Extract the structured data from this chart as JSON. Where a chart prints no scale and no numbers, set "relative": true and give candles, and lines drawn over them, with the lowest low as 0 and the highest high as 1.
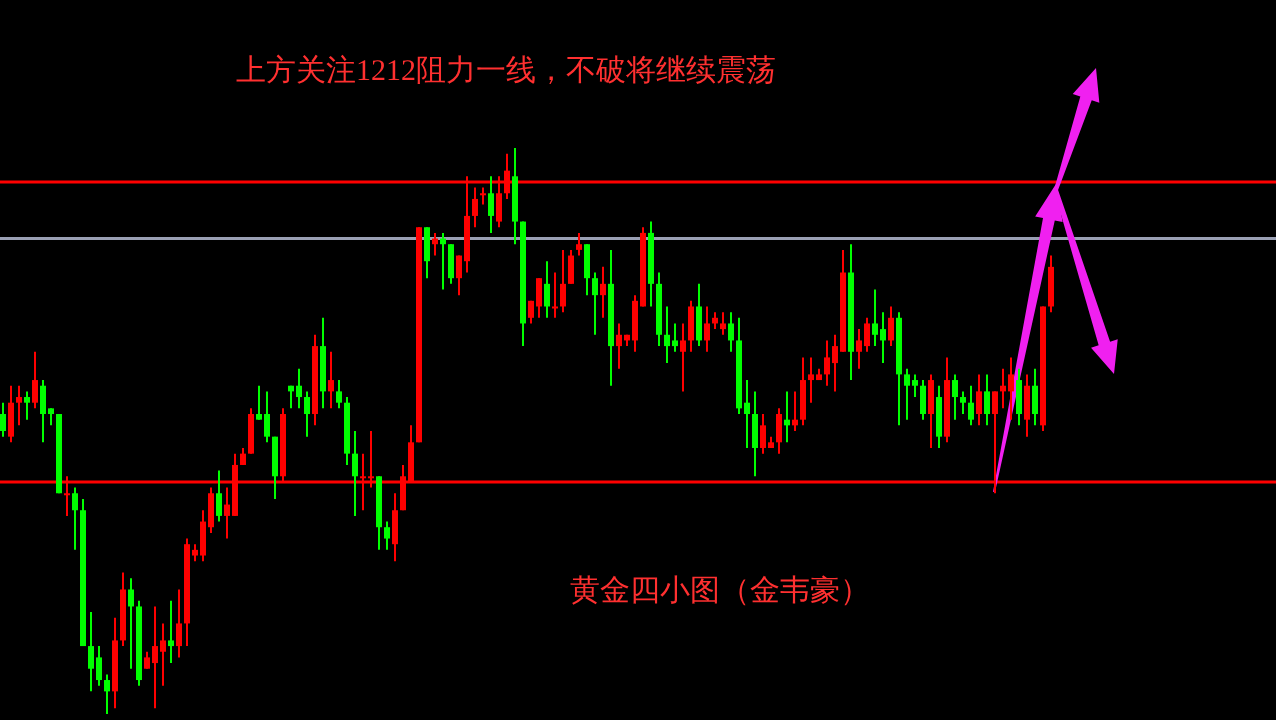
{
  "chart_data": {
    "type": "candlestick",
    "relative": true,
    "title": "上方关注1212阻力一线，不破将继续震荡",
    "annotations": [
      "黄金四小图（金韦豪）"
    ],
    "categories": [
      null,
      null,
      null,
      null,
      null,
      null,
      null,
      null,
      null,
      null,
      null,
      null,
      null,
      null,
      null,
      null,
      null,
      null,
      null,
      null,
      null,
      null,
      null,
      null,
      null,
      null,
      null,
      null,
      null,
      null,
      null,
      null,
      null,
      null,
      null,
      null,
      null,
      null,
      null,
      null,
      null,
      null,
      null,
      null,
      null,
      null,
      null,
      null,
      null,
      null,
      null,
      null,
      null,
      null,
      null,
      null,
      null,
      null,
      null,
      null,
      null,
      null,
      null,
      null,
      null,
      null,
      null,
      null,
      null,
      null,
      null,
      null,
      null,
      null,
      null,
      null,
      null,
      null,
      null,
      null,
      null,
      null,
      null,
      null,
      null,
      null,
      null,
      null,
      null,
      null,
      null,
      null,
      null,
      null,
      null,
      null,
      null,
      null,
      null,
      null,
      null,
      null,
      null,
      null,
      null,
      null,
      null,
      null,
      null,
      null,
      null,
      null,
      null,
      null,
      null,
      null,
      null,
      null,
      null,
      null,
      null,
      null,
      null,
      null,
      null,
      null,
      null,
      null,
      null,
      null,
      null,
      null
    ],
    "ohlc": [
      [
        0.53,
        0.55,
        0.49,
        0.5
      ],
      [
        0.49,
        0.58,
        0.48,
        0.55
      ],
      [
        0.55,
        0.58,
        0.51,
        0.56
      ],
      [
        0.56,
        0.57,
        0.52,
        0.55
      ],
      [
        0.55,
        0.64,
        0.54,
        0.59
      ],
      [
        0.58,
        0.59,
        0.48,
        0.53
      ],
      [
        0.54,
        0.54,
        0.51,
        0.53
      ],
      [
        0.53,
        0.53,
        0.39,
        0.39
      ],
      [
        0.39,
        0.42,
        0.35,
        0.39
      ],
      [
        0.39,
        0.4,
        0.29,
        0.36
      ],
      [
        0.36,
        0.38,
        0.12,
        0.12
      ],
      [
        0.12,
        0.18,
        0.04,
        0.08
      ],
      [
        0.1,
        0.12,
        0.05,
        0.06
      ],
      [
        0.06,
        0.07,
        0.0,
        0.04
      ],
      [
        0.04,
        0.17,
        0.01,
        0.13
      ],
      [
        0.13,
        0.25,
        0.12,
        0.22
      ],
      [
        0.22,
        0.24,
        0.08,
        0.19
      ],
      [
        0.19,
        0.2,
        0.05,
        0.06
      ],
      [
        0.08,
        0.11,
        0.08,
        0.1
      ],
      [
        0.09,
        0.19,
        0.01,
        0.12
      ],
      [
        0.11,
        0.16,
        0.05,
        0.13
      ],
      [
        0.13,
        0.2,
        0.09,
        0.12
      ],
      [
        0.12,
        0.22,
        0.1,
        0.16
      ],
      [
        0.16,
        0.31,
        0.12,
        0.3
      ],
      [
        0.28,
        0.3,
        0.27,
        0.29
      ],
      [
        0.28,
        0.36,
        0.27,
        0.34
      ],
      [
        0.33,
        0.4,
        0.32,
        0.39
      ],
      [
        0.39,
        0.43,
        0.34,
        0.35
      ],
      [
        0.35,
        0.4,
        0.31,
        0.37
      ],
      [
        0.35,
        0.46,
        0.35,
        0.44
      ],
      [
        0.44,
        0.47,
        0.44,
        0.46
      ],
      [
        0.46,
        0.54,
        0.46,
        0.53
      ],
      [
        0.53,
        0.58,
        0.52,
        0.52
      ],
      [
        0.53,
        0.57,
        0.48,
        0.49
      ],
      [
        0.49,
        0.49,
        0.38,
        0.42
      ],
      [
        0.42,
        0.54,
        0.41,
        0.53
      ],
      [
        0.58,
        0.58,
        0.54,
        0.57
      ],
      [
        0.58,
        0.61,
        0.54,
        0.56
      ],
      [
        0.56,
        0.57,
        0.49,
        0.53
      ],
      [
        0.53,
        0.67,
        0.51,
        0.65
      ],
      [
        0.65,
        0.7,
        0.54,
        0.57
      ],
      [
        0.57,
        0.64,
        0.54,
        0.59
      ],
      [
        0.57,
        0.59,
        0.54,
        0.55
      ],
      [
        0.55,
        0.56,
        0.44,
        0.46
      ],
      [
        0.46,
        0.5,
        0.35,
        0.42
      ],
      [
        0.42,
        0.46,
        0.36,
        0.42
      ],
      [
        0.42,
        0.5,
        0.4,
        0.42
      ],
      [
        0.42,
        0.42,
        0.29,
        0.33
      ],
      [
        0.33,
        0.34,
        0.29,
        0.31
      ],
      [
        0.3,
        0.39,
        0.27,
        0.36
      ],
      [
        0.36,
        0.44,
        0.36,
        0.42
      ],
      [
        0.41,
        0.51,
        0.41,
        0.48
      ],
      [
        0.48,
        0.86,
        0.48,
        0.86
      ],
      [
        0.86,
        0.86,
        0.77,
        0.8
      ],
      [
        0.83,
        0.85,
        0.81,
        0.84
      ],
      [
        0.84,
        0.85,
        0.75,
        0.83
      ],
      [
        0.83,
        0.83,
        0.76,
        0.77
      ],
      [
        0.77,
        0.81,
        0.74,
        0.81
      ],
      [
        0.8,
        0.95,
        0.78,
        0.88
      ],
      [
        0.88,
        0.93,
        0.86,
        0.91
      ],
      [
        0.92,
        0.93,
        0.9,
        0.92
      ],
      [
        0.92,
        0.95,
        0.85,
        0.88
      ],
      [
        0.87,
        0.95,
        0.86,
        0.92
      ],
      [
        0.92,
        0.99,
        0.91,
        0.96
      ],
      [
        0.95,
        1.0,
        0.83,
        0.87
      ],
      [
        0.87,
        0.87,
        0.65,
        0.69
      ],
      [
        0.7,
        0.73,
        0.69,
        0.73
      ],
      [
        0.72,
        0.77,
        0.7,
        0.77
      ],
      [
        0.76,
        0.8,
        0.7,
        0.72
      ],
      [
        0.72,
        0.78,
        0.7,
        0.72
      ],
      [
        0.72,
        0.82,
        0.71,
        0.76
      ],
      [
        0.76,
        0.82,
        0.76,
        0.81
      ],
      [
        0.82,
        0.85,
        0.81,
        0.83
      ],
      [
        0.83,
        0.83,
        0.74,
        0.77
      ],
      [
        0.77,
        0.78,
        0.67,
        0.74
      ],
      [
        0.74,
        0.79,
        0.7,
        0.76
      ],
      [
        0.76,
        0.82,
        0.58,
        0.65
      ],
      [
        0.65,
        0.69,
        0.61,
        0.67
      ],
      [
        0.66,
        0.67,
        0.65,
        0.67
      ],
      [
        0.66,
        0.74,
        0.64,
        0.73
      ],
      [
        0.72,
        0.86,
        0.72,
        0.85
      ],
      [
        0.85,
        0.87,
        0.72,
        0.76
      ],
      [
        0.76,
        0.78,
        0.65,
        0.67
      ],
      [
        0.67,
        0.72,
        0.62,
        0.65
      ],
      [
        0.66,
        0.69,
        0.64,
        0.65
      ],
      [
        0.64,
        0.69,
        0.57,
        0.66
      ],
      [
        0.66,
        0.73,
        0.64,
        0.72
      ],
      [
        0.72,
        0.76,
        0.65,
        0.66
      ],
      [
        0.66,
        0.72,
        0.64,
        0.69
      ],
      [
        0.69,
        0.71,
        0.68,
        0.7
      ],
      [
        0.68,
        0.71,
        0.67,
        0.69
      ],
      [
        0.69,
        0.71,
        0.64,
        0.66
      ],
      [
        0.66,
        0.7,
        0.53,
        0.54
      ],
      [
        0.55,
        0.59,
        0.47,
        0.53
      ],
      [
        0.53,
        0.57,
        0.42,
        0.47
      ],
      [
        0.47,
        0.53,
        0.46,
        0.51
      ],
      [
        0.47,
        0.49,
        0.47,
        0.48
      ],
      [
        0.48,
        0.54,
        0.46,
        0.53
      ],
      [
        0.52,
        0.57,
        0.48,
        0.51
      ],
      [
        0.51,
        0.57,
        0.5,
        0.52
      ],
      [
        0.52,
        0.63,
        0.51,
        0.59
      ],
      [
        0.59,
        0.63,
        0.55,
        0.6
      ],
      [
        0.59,
        0.61,
        0.59,
        0.6
      ],
      [
        0.6,
        0.66,
        0.58,
        0.63
      ],
      [
        0.62,
        0.67,
        0.57,
        0.65
      ],
      [
        0.64,
        0.82,
        0.64,
        0.78
      ],
      [
        0.78,
        0.83,
        0.59,
        0.64
      ],
      [
        0.64,
        0.68,
        0.61,
        0.66
      ],
      [
        0.65,
        0.7,
        0.64,
        0.69
      ],
      [
        0.69,
        0.75,
        0.65,
        0.67
      ],
      [
        0.68,
        0.71,
        0.62,
        0.66
      ],
      [
        0.66,
        0.72,
        0.65,
        0.7
      ],
      [
        0.7,
        0.71,
        0.51,
        0.6
      ],
      [
        0.6,
        0.61,
        0.52,
        0.58
      ],
      [
        0.59,
        0.6,
        0.56,
        0.58
      ],
      [
        0.58,
        0.59,
        0.52,
        0.53
      ],
      [
        0.53,
        0.6,
        0.47,
        0.59
      ],
      [
        0.56,
        0.58,
        0.47,
        0.49
      ],
      [
        0.49,
        0.63,
        0.48,
        0.59
      ],
      [
        0.59,
        0.6,
        0.52,
        0.56
      ],
      [
        0.56,
        0.57,
        0.53,
        0.55
      ],
      [
        0.55,
        0.58,
        0.51,
        0.52
      ],
      [
        0.53,
        0.6,
        0.51,
        0.57
      ],
      [
        0.57,
        0.6,
        0.51,
        0.53
      ],
      [
        0.53,
        0.57,
        0.39,
        0.57
      ],
      [
        0.57,
        0.61,
        0.54,
        0.58
      ],
      [
        0.57,
        0.63,
        0.52,
        0.6
      ],
      [
        0.59,
        0.61,
        0.51,
        0.53
      ],
      [
        0.52,
        0.6,
        0.49,
        0.58
      ],
      [
        0.58,
        0.61,
        0.51,
        0.53
      ],
      [
        0.51,
        0.72,
        0.5,
        0.72
      ],
      [
        0.72,
        0.81,
        0.71,
        0.79
      ]
    ],
    "ref_lines": [
      {
        "axis": "y",
        "value": 0.94,
        "color": "#ff0000"
      },
      {
        "axis": "y",
        "value": 0.84,
        "color": "#9aa0b4"
      },
      {
        "axis": "y",
        "value": 0.41,
        "color": "#ff0000"
      }
    ]
  }
}
